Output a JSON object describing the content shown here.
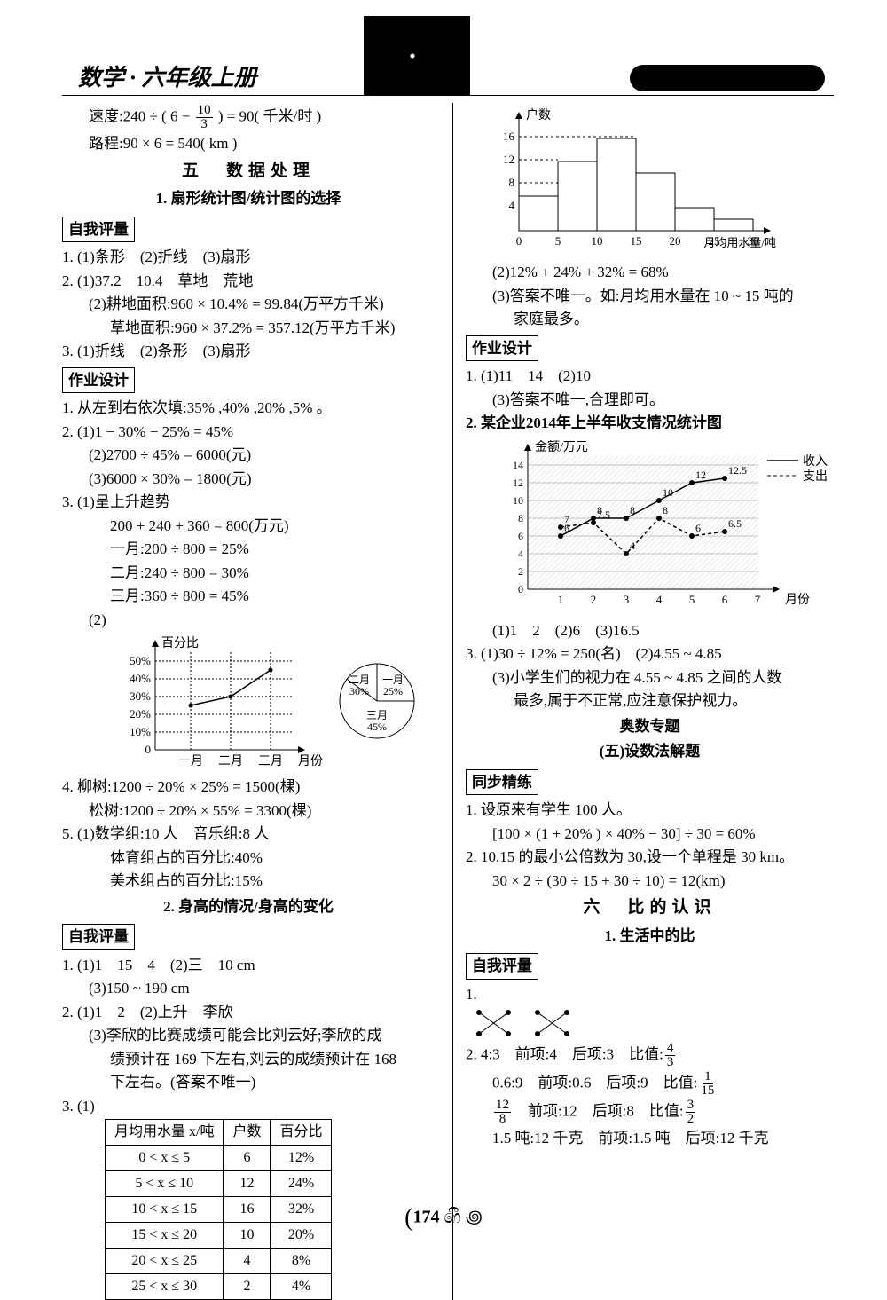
{
  "header": {
    "title": "数学 · 六年级上册"
  },
  "left": {
    "eq1_pre": "速度:240 ÷ ( 6 − ",
    "eq1_frac_n": "10",
    "eq1_frac_d": "3",
    "eq1_post": " ) = 90( 千米/时 )",
    "eq2": "路程:90 × 6 = 540( km )",
    "sectA": "五　数据处理",
    "subA": "1. 扇形统计图/统计图的选择",
    "boxA": "自我评量",
    "a1": "1. (1)条形　(2)折线　(3)扇形",
    "a2": "2. (1)37.2　10.4　草地　荒地",
    "a2b": "(2)耕地面积:960 × 10.4% = 99.84(万平方千米)",
    "a2c": "草地面积:960 × 37.2% = 357.12(万平方千米)",
    "a3": "3. (1)折线　(2)条形　(3)扇形",
    "boxB": "作业设计",
    "b1": "1. 从左到右依次填:35% ,40% ,20% ,5% 。",
    "b2": "2. (1)1 − 30% − 25% = 45%",
    "b2b": "(2)2700 ÷ 45% = 6000(元)",
    "b2c": "(3)6000 × 30% = 1800(元)",
    "b3": "3. (1)呈上升趋势",
    "b3a": "200 + 240 + 360 = 800(万元)",
    "b3b": "一月:200 ÷ 800 = 25%",
    "b3c": "二月:240 ÷ 800 = 30%",
    "b3d": "三月:360 ÷ 800 = 45%",
    "b3e": "(2)",
    "chart1": {
      "ylabel": "百分比",
      "xlabels": [
        "一月",
        "二月",
        "三月"
      ],
      "xaxis_label": "月份",
      "ticks": [
        "0",
        "10%",
        "20%",
        "30%",
        "40%",
        "50%"
      ],
      "values": [
        25,
        30,
        45
      ],
      "pie": [
        {
          "label": "一月",
          "pct": "25%"
        },
        {
          "label": "二月",
          "pct": "30%"
        },
        {
          "label": "三月",
          "pct": "45%"
        }
      ]
    },
    "b4": "4. 柳树:1200 ÷ 20% × 25% = 1500(棵)",
    "b4b": "松树:1200 ÷ 20% × 55% = 3300(棵)",
    "b5": "5. (1)数学组:10 人　音乐组:8 人",
    "b5b": "体育组占的百分比:40%",
    "b5c": "美术组占的百分比:15%",
    "subB": "2. 身高的情况/身高的变化",
    "boxC": "自我评量",
    "c1": "1. (1)1　15　4　(2)三　10 cm",
    "c1b": "(3)150 ~ 190 cm",
    "c2": "2. (1)1　2　(2)上升　李欣",
    "c2b": "(3)李欣的比赛成绩可能会比刘云好;李欣的成",
    "c2c": "绩预计在 169 下左右,刘云的成绩预计在 168",
    "c2d": "下左右。(答案不唯一)",
    "c3": "3. (1)",
    "table": {
      "head": [
        "月均用水量 x/吨",
        "户数",
        "百分比"
      ],
      "rows": [
        [
          "0 < x ≤ 5",
          "6",
          "12%"
        ],
        [
          "5 < x ≤ 10",
          "12",
          "24%"
        ],
        [
          "10 < x ≤ 15",
          "16",
          "32%"
        ],
        [
          "15 < x ≤ 20",
          "10",
          "20%"
        ],
        [
          "20 < x ≤ 25",
          "4",
          "8%"
        ],
        [
          "25 < x ≤ 30",
          "2",
          "4%"
        ]
      ]
    }
  },
  "right": {
    "chartBar": {
      "ylabel": "户数",
      "xlabel": "月均用水量/吨",
      "yticks": [
        "4",
        "8",
        "12",
        "16"
      ],
      "xticks": [
        "0",
        "5",
        "10",
        "15",
        "20",
        "25",
        "30"
      ],
      "bars": [
        6,
        12,
        16,
        10,
        4,
        2
      ],
      "ymax": 18
    },
    "r2": "(2)12% + 24% + 32% = 68%",
    "r3": "(3)答案不唯一。如:月均用水量在 10 ~ 15 吨的",
    "r3b": "家庭最多。",
    "boxD": "作业设计",
    "d1": "1. (1)11　14　(2)10",
    "d1b": "(3)答案不唯一,合理即可。",
    "d2": "2. 某企业2014年上半年收支情况统计图",
    "chartLine": {
      "ylabel": "金额/万元",
      "xlabel": "月份",
      "yticks": [
        "0",
        "2",
        "4",
        "6",
        "8",
        "10",
        "12",
        "14"
      ],
      "xticks": [
        "1",
        "2",
        "3",
        "4",
        "5",
        "6",
        "7"
      ],
      "legend_in": "收入",
      "legend_out": "支出",
      "series_in": [
        6,
        8,
        8,
        10,
        12,
        12.5
      ],
      "series_out": [
        7,
        7.5,
        4,
        8,
        6,
        6.5
      ],
      "labels_in": [
        "6",
        "8",
        "8",
        "10",
        "12",
        "12.5"
      ],
      "labels_out": [
        "7",
        "7.5",
        "4",
        "8",
        "6",
        "6.5"
      ]
    },
    "d2a": "(1)1　2　(2)6　(3)16.5",
    "d3": "3. (1)30 ÷ 12% = 250(名)　(2)4.55 ~ 4.85",
    "d3b": "(3)小学生们的视力在 4.55 ~ 4.85 之间的人数",
    "d3c": "最多,属于不正常,应注意保护视力。",
    "subC": "奥数专题",
    "subC2": "(五)设数法解题",
    "boxE": "同步精练",
    "e1": "1. 设原来有学生 100 人。",
    "e1b": "[100 × (1 + 20% ) × 40% − 30] ÷ 30 = 60%",
    "e2": "2. 10,15 的最小公倍数为 30,设一个单程是 30 km。",
    "e2b": "30 × 2 ÷ (30 ÷ 15 + 30 ÷ 10) = 12(km)",
    "sectB": "六　比的认识",
    "subD": "1. 生活中的比",
    "boxF": "自我评量",
    "f1": "1.",
    "f2_pre": "2. 4:3　前项:4　后项:3　比值:",
    "f2n": "4",
    "f2d": "3",
    "f3_pre": "0.6:9　前项:0.6　后项:9　比值:",
    "f3n": "1",
    "f3d": "15",
    "f4n": "12",
    "f4d": "8",
    "f4_mid": "　前项:12　后项:8　比值:",
    "f4rn": "3",
    "f4rd": "2",
    "f5": "1.5 吨:12 千克　前项:1.5 吨　后项:12 千克"
  },
  "pagenum": "174"
}
